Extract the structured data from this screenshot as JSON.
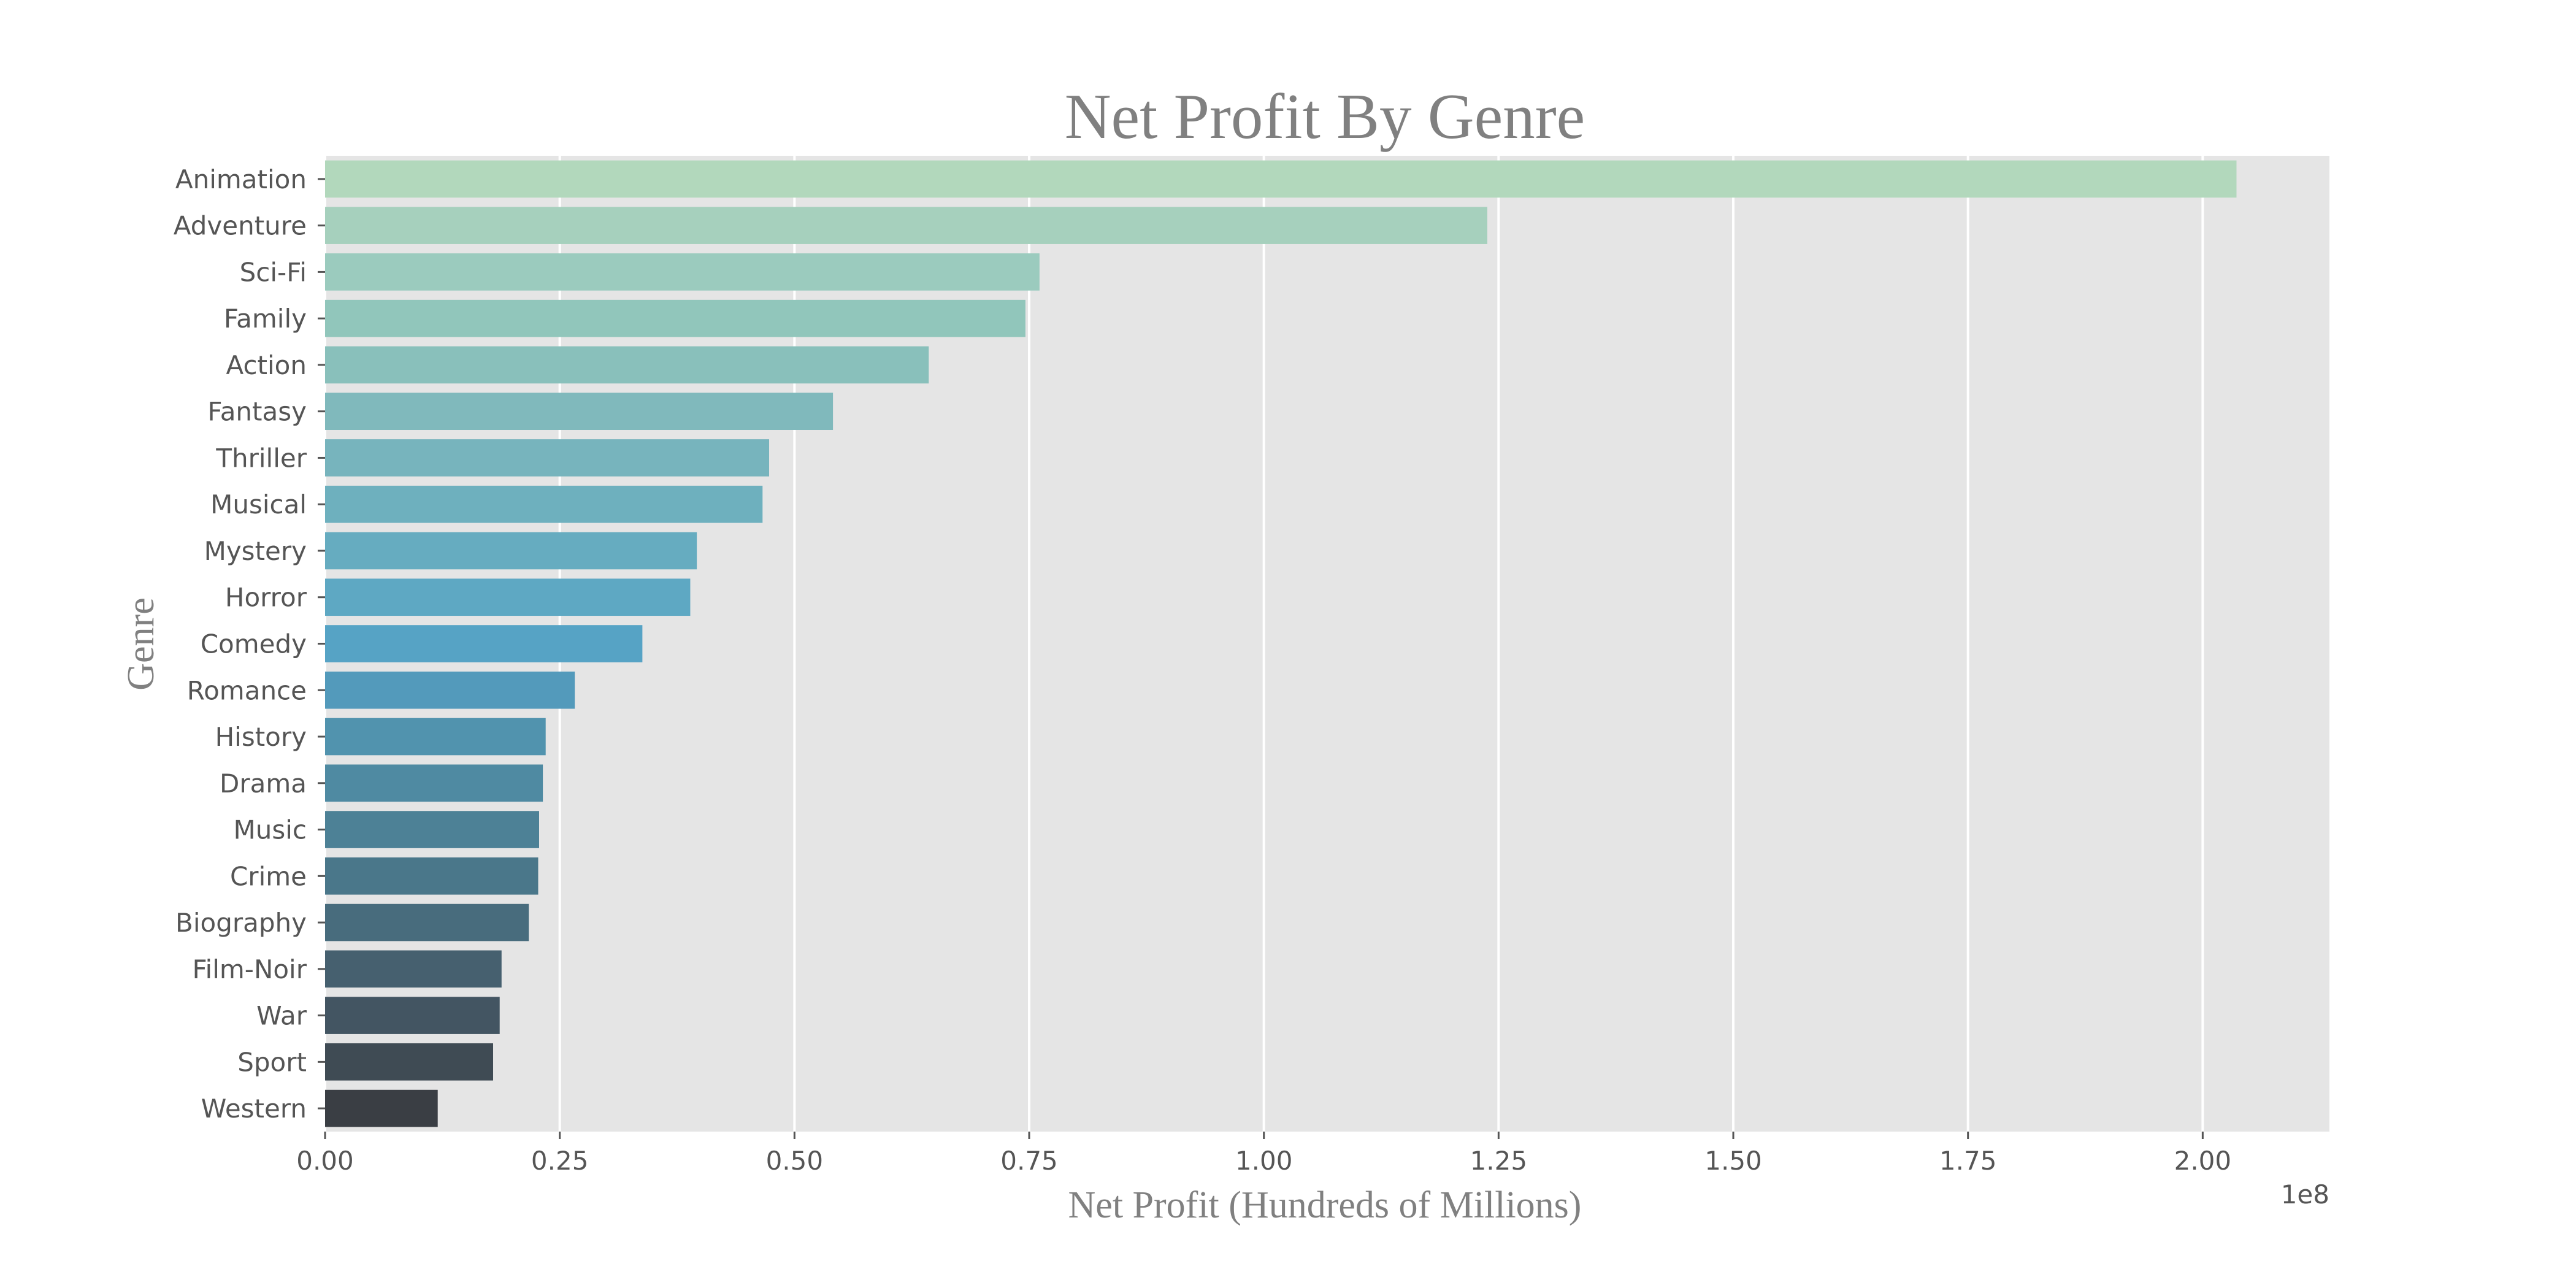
{
  "chart_data": {
    "type": "bar",
    "orientation": "horizontal",
    "title": "Net Profit By Genre",
    "xlabel": "Net Profit (Hundreds of Millions)",
    "ylabel": "Genre",
    "offset_label": "1e8",
    "xlim": [
      0,
      213500000
    ],
    "x_ticks": [
      {
        "value": 0,
        "label": "0.00"
      },
      {
        "value": 25000000,
        "label": "0.25"
      },
      {
        "value": 50000000,
        "label": "0.50"
      },
      {
        "value": 75000000,
        "label": "0.75"
      },
      {
        "value": 100000000,
        "label": "1.00"
      },
      {
        "value": 125000000,
        "label": "1.25"
      },
      {
        "value": 150000000,
        "label": "1.50"
      },
      {
        "value": 175000000,
        "label": "1.75"
      },
      {
        "value": 200000000,
        "label": "2.00"
      }
    ],
    "grid": true,
    "categories": [
      "Animation",
      "Adventure",
      "Sci-Fi",
      "Family",
      "Action",
      "Fantasy",
      "Thriller",
      "Musical",
      "Mystery",
      "Horror",
      "Comedy",
      "Romance",
      "History",
      "Drama",
      "Music",
      "Crime",
      "Biography",
      "Film-Noir",
      "War",
      "Sport",
      "Western"
    ],
    "values": [
      203600000,
      123800000,
      76100000,
      74600000,
      64300000,
      54100000,
      47300000,
      46600000,
      39600000,
      38900000,
      33800000,
      26600000,
      23500000,
      23200000,
      22800000,
      22700000,
      21700000,
      18800000,
      18600000,
      17900000,
      12000000
    ],
    "colors": [
      "#b2d8bc",
      "#a6d0bd",
      "#9bcbbe",
      "#91c6bb",
      "#89c0bb",
      "#80b9bc",
      "#77b4bd",
      "#6eb0be",
      "#66acc0",
      "#5ea8c3",
      "#56a3c5",
      "#539abb",
      "#5193ae",
      "#4f8aa2",
      "#4d8196",
      "#4a778a",
      "#486c7d",
      "#46606f",
      "#435562",
      "#3f4b54",
      "#3a3e44"
    ],
    "plot_background": "#e5e5e5",
    "grid_color": "#ffffff",
    "title_color": "#808080",
    "label_color": "#808080",
    "tick_color": "#555555"
  }
}
